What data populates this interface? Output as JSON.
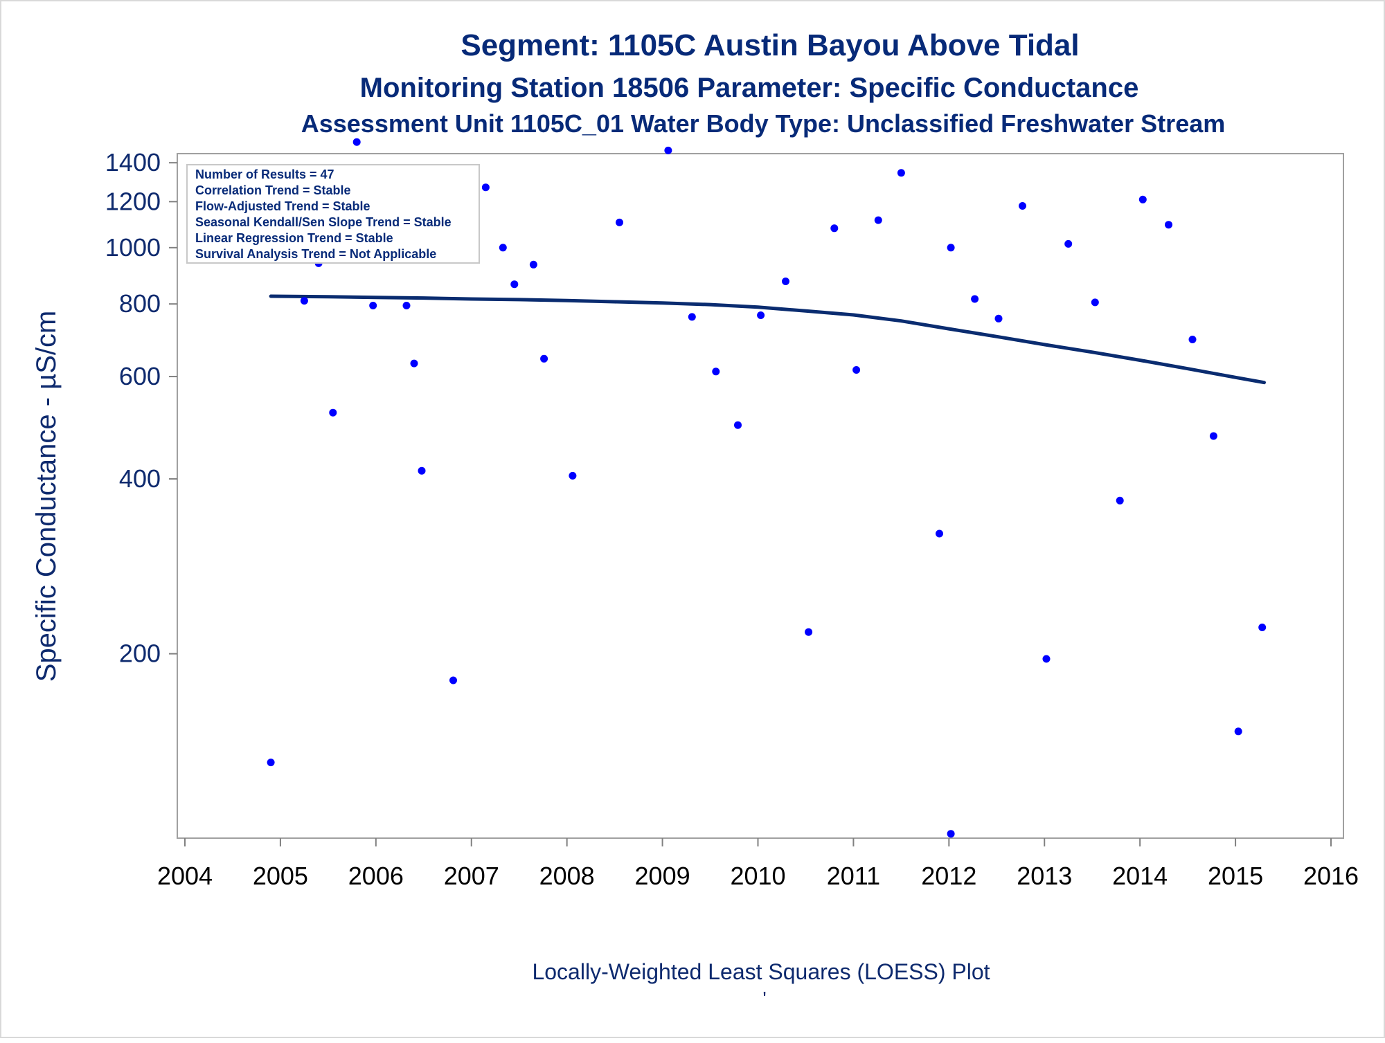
{
  "chart_data": {
    "type": "scatter",
    "title": "Segment: 1105C  Austin Bayou Above Tidal",
    "subtitle": "Monitoring Station 18506 Parameter: Specific Conductance",
    "subtitle2": "Assessment Unit 1105C_01   Water Body Type: Unclassified Freshwater Stream",
    "footnote": "Locally-Weighted Least Squares (LOESS) Plot",
    "footnote_mark": "'",
    "ylabel": "Specific Conductance -  µS/cm",
    "xlabel": "",
    "y_scale": "log",
    "xlim": [
      2004,
      2016
    ],
    "ylim": [
      95,
      1500
    ],
    "x_ticks": [
      "2004",
      "2005",
      "2006",
      "2007",
      "2008",
      "2009",
      "2010",
      "2011",
      "2012",
      "2013",
      "2014",
      "2015",
      "2016"
    ],
    "y_ticks": [
      200,
      400,
      600,
      800,
      1000,
      1200,
      1400
    ],
    "grid": false,
    "inset_box": {
      "placement": "top-left",
      "lines": [
        "Number of Results = 47",
        "Correlation Trend = Stable",
        "Flow-Adjusted Trend = Stable",
        "Seasonal Kendall/Sen Slope Trend = Stable",
        "Linear Regression Trend = Stable",
        "Survival Analysis Trend = Not Applicable"
      ]
    },
    "colors": {
      "points": "#0000ff",
      "loess": "#0a2c70",
      "text": "#072a78",
      "frame": "#a0a0a0"
    },
    "series": [
      {
        "kind": "points",
        "points": [
          {
            "x": 2004.9,
            "y": 130
          },
          {
            "x": 2005.0,
            "y": 1115
          },
          {
            "x": 2005.25,
            "y": 810
          },
          {
            "x": 2005.4,
            "y": 940
          },
          {
            "x": 2005.55,
            "y": 520
          },
          {
            "x": 2005.8,
            "y": 1520
          },
          {
            "x": 2005.97,
            "y": 795
          },
          {
            "x": 2006.14,
            "y": 1290
          },
          {
            "x": 2006.32,
            "y": 795
          },
          {
            "x": 2006.4,
            "y": 632
          },
          {
            "x": 2006.48,
            "y": 413
          },
          {
            "x": 2006.62,
            "y": 1050
          },
          {
            "x": 2006.81,
            "y": 180
          },
          {
            "x": 2007.15,
            "y": 1270
          },
          {
            "x": 2007.33,
            "y": 1000
          },
          {
            "x": 2007.45,
            "y": 865
          },
          {
            "x": 2007.65,
            "y": 935
          },
          {
            "x": 2007.76,
            "y": 644
          },
          {
            "x": 2008.06,
            "y": 405
          },
          {
            "x": 2008.55,
            "y": 1105
          },
          {
            "x": 2009.06,
            "y": 1470
          },
          {
            "x": 2009.31,
            "y": 760
          },
          {
            "x": 2009.56,
            "y": 612
          },
          {
            "x": 2009.79,
            "y": 495
          },
          {
            "x": 2010.03,
            "y": 765
          },
          {
            "x": 2010.29,
            "y": 875
          },
          {
            "x": 2010.53,
            "y": 218
          },
          {
            "x": 2010.8,
            "y": 1080
          },
          {
            "x": 2011.03,
            "y": 616
          },
          {
            "x": 2011.26,
            "y": 1115
          },
          {
            "x": 2011.5,
            "y": 1345
          },
          {
            "x": 2011.9,
            "y": 322
          },
          {
            "x": 2012.02,
            "y": 1000
          },
          {
            "x": 2012.02,
            "y": 98
          },
          {
            "x": 2012.27,
            "y": 816
          },
          {
            "x": 2012.52,
            "y": 755
          },
          {
            "x": 2012.77,
            "y": 1180
          },
          {
            "x": 2013.02,
            "y": 196
          },
          {
            "x": 2013.25,
            "y": 1015
          },
          {
            "x": 2013.53,
            "y": 805
          },
          {
            "x": 2013.79,
            "y": 367
          },
          {
            "x": 2014.03,
            "y": 1210
          },
          {
            "x": 2014.3,
            "y": 1095
          },
          {
            "x": 2014.55,
            "y": 695
          },
          {
            "x": 2014.77,
            "y": 474
          },
          {
            "x": 2015.03,
            "y": 147
          },
          {
            "x": 2015.28,
            "y": 222
          }
        ]
      },
      {
        "kind": "loess",
        "points": [
          {
            "x": 2004.9,
            "y": 825
          },
          {
            "x": 2005.5,
            "y": 823
          },
          {
            "x": 2006.0,
            "y": 821
          },
          {
            "x": 2006.5,
            "y": 819
          },
          {
            "x": 2007.0,
            "y": 816
          },
          {
            "x": 2007.5,
            "y": 814
          },
          {
            "x": 2008.0,
            "y": 811
          },
          {
            "x": 2008.5,
            "y": 807
          },
          {
            "x": 2009.0,
            "y": 803
          },
          {
            "x": 2009.5,
            "y": 798
          },
          {
            "x": 2010.0,
            "y": 790
          },
          {
            "x": 2010.5,
            "y": 778
          },
          {
            "x": 2011.0,
            "y": 766
          },
          {
            "x": 2011.5,
            "y": 748
          },
          {
            "x": 2012.0,
            "y": 725
          },
          {
            "x": 2012.5,
            "y": 703
          },
          {
            "x": 2013.0,
            "y": 681
          },
          {
            "x": 2013.5,
            "y": 661
          },
          {
            "x": 2014.0,
            "y": 640
          },
          {
            "x": 2014.5,
            "y": 619
          },
          {
            "x": 2015.0,
            "y": 598
          },
          {
            "x": 2015.3,
            "y": 586
          }
        ]
      }
    ]
  }
}
